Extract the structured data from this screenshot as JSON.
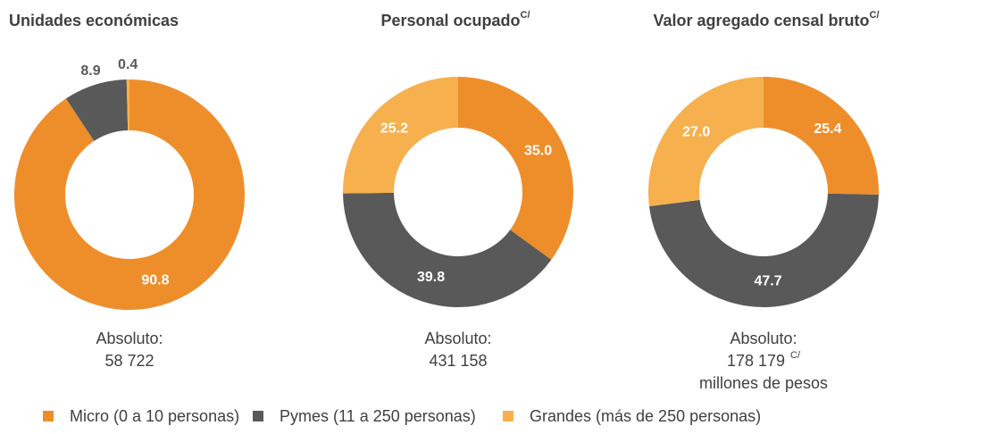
{
  "legend": [
    {
      "name": "Micro (0 a 10 personas)",
      "color": "#EE8E2A"
    },
    {
      "name": "Pymes (11 a 250 personas)",
      "color": "#595959"
    },
    {
      "name": "Grandes (más de 250 personas)",
      "color": "#F7B04E"
    }
  ],
  "chart_data": [
    {
      "type": "donut",
      "title": "Unidades económicas",
      "values": [
        90.8,
        8.9,
        0.4
      ],
      "annotation": [
        "Absoluto:",
        "58 722"
      ]
    },
    {
      "type": "donut",
      "title": "Personal ocupado",
      "title_note": "C/",
      "values": [
        35,
        39.8,
        25.2
      ],
      "value_labels": [
        "35.0",
        "39.8",
        "25.2"
      ],
      "annotation": [
        "Absoluto:",
        "431 158"
      ]
    },
    {
      "type": "donut",
      "title": "Valor agregado censal bruto",
      "title_note": "C/",
      "values": [
        25.4,
        47.7,
        27
      ],
      "value_labels": [
        "25.4",
        "47.7",
        "27.0"
      ],
      "annotation": [
        "Absoluto:",
        "178 179",
        "millones de pesos"
      ],
      "annotation_note": "C/"
    }
  ]
}
